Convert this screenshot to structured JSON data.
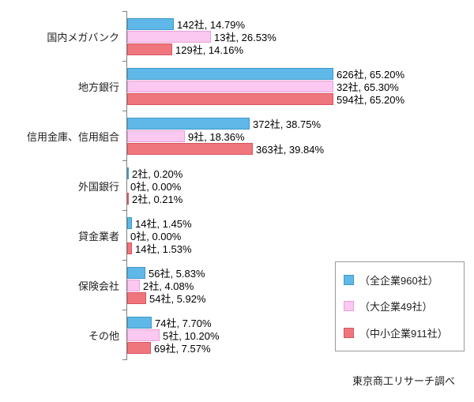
{
  "chart_data": {
    "type": "bar",
    "orientation": "horizontal",
    "title": "",
    "xlabel": "",
    "ylabel": "",
    "xlim": [
      0,
      70
    ],
    "grid": false,
    "legend_position": "right-bottom",
    "categories": [
      "国内メガバンク",
      "地方銀行",
      "信用金庫、信用組合",
      "外国銀行",
      "貸金業者",
      "保険会社",
      "その他"
    ],
    "series": [
      {
        "key": "all-companies",
        "name": "（全企業960社）",
        "color": "#5FB8E8",
        "border": "#3F98C8",
        "counts": [
          142,
          626,
          372,
          2,
          14,
          56,
          74
        ],
        "values": [
          14.79,
          65.2,
          38.75,
          0.2,
          1.45,
          5.83,
          7.7
        ],
        "labels": [
          "142社, 14.79%",
          "626社, 65.20%",
          "372社, 38.75%",
          "2社, 0.20%",
          "14社, 1.45%",
          "56社, 5.83%",
          "74社, 7.70%"
        ]
      },
      {
        "key": "large-companies",
        "name": "（大企業49社）",
        "color": "#FAC8F0",
        "border": "#E8A0D8",
        "counts": [
          13,
          32,
          9,
          0,
          0,
          2,
          5
        ],
        "values": [
          26.53,
          65.3,
          18.36,
          0.0,
          0.0,
          4.08,
          10.2
        ],
        "labels": [
          "13社, 26.53%",
          "32社, 65.30%",
          "9社, 18.36%",
          "0社, 0.00%",
          "0社, 0.00%",
          "2社, 4.08%",
          "5社, 10.20%"
        ]
      },
      {
        "key": "sme-companies",
        "name": "（中小企業911社）",
        "color": "#F0767E",
        "border": "#D85560",
        "counts": [
          129,
          594,
          363,
          2,
          14,
          54,
          69
        ],
        "values": [
          14.16,
          65.2,
          39.84,
          0.21,
          1.53,
          5.92,
          7.57
        ],
        "labels": [
          "129社, 14.16%",
          "594社, 65.20%",
          "363社, 39.84%",
          "2社, 0.21%",
          "14社, 1.53%",
          "54社, 5.92%",
          "69社, 7.57%"
        ]
      }
    ]
  },
  "footer": {
    "source": "東京商工リサーチ調べ"
  }
}
